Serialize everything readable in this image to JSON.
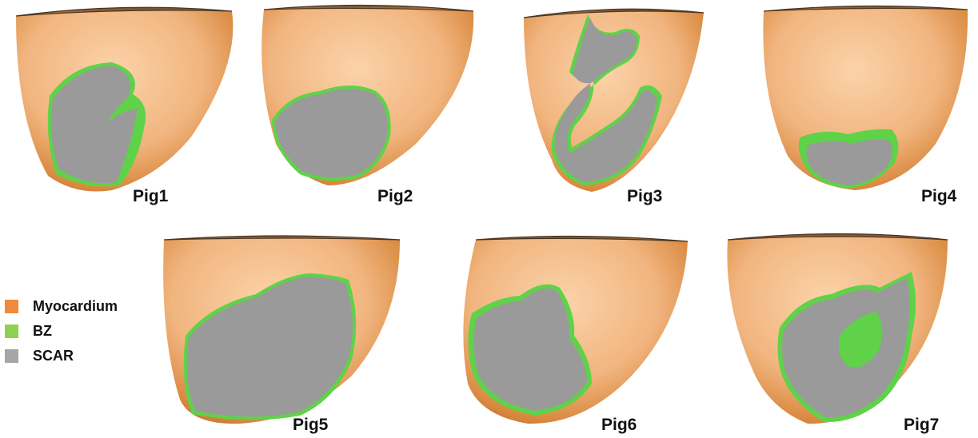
{
  "figure": {
    "panels": [
      {
        "label": "Pig1"
      },
      {
        "label": "Pig2"
      },
      {
        "label": "Pig3"
      },
      {
        "label": "Pig4"
      },
      {
        "label": "Pig5"
      },
      {
        "label": "Pig6"
      },
      {
        "label": "Pig7"
      }
    ]
  },
  "legend": {
    "items": [
      {
        "label": "Myocardium",
        "color": "#ef8a3c"
      },
      {
        "label": "BZ",
        "color": "#8fd14f"
      },
      {
        "label": "SCAR",
        "color": "#a6a6a6"
      }
    ]
  },
  "colors": {
    "myocardium_surface": "#f2b27a",
    "border_zone": "#5fd24a",
    "scar": "#9a9a9a"
  }
}
